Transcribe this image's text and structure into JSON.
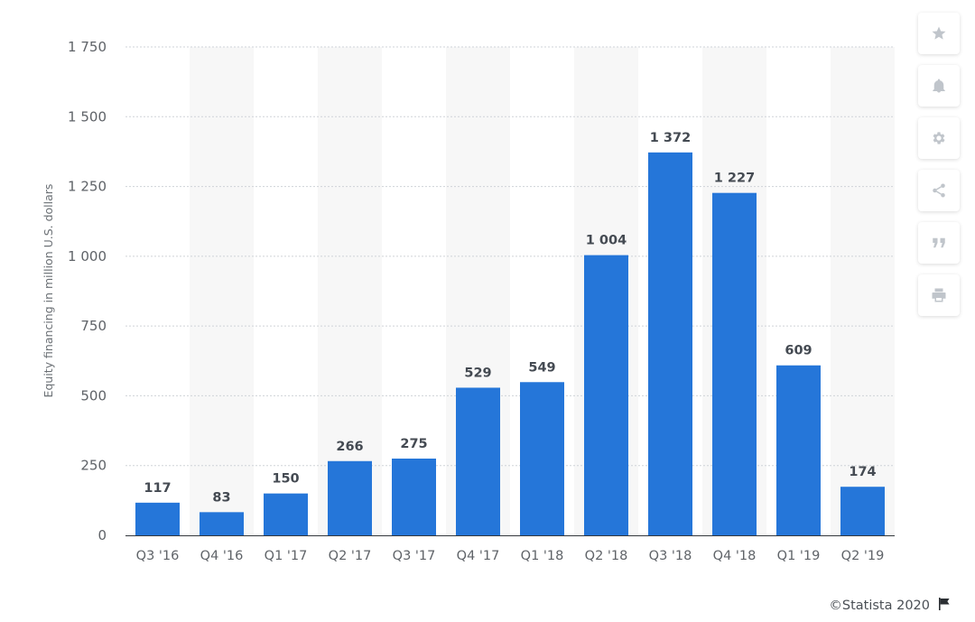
{
  "chart_data": {
    "type": "bar",
    "categories": [
      "Q3 '16",
      "Q4 '16",
      "Q1 '17",
      "Q2 '17",
      "Q3 '17",
      "Q4 '17",
      "Q1 '18",
      "Q2 '18",
      "Q3 '18",
      "Q4 '18",
      "Q1 '19",
      "Q2 '19"
    ],
    "values": [
      117,
      83,
      150,
      266,
      275,
      529,
      549,
      1004,
      1372,
      1227,
      609,
      174
    ],
    "value_labels": [
      "117",
      "83",
      "150",
      "266",
      "275",
      "529",
      "549",
      "1 004",
      "1 372",
      "1 227",
      "609",
      "174"
    ],
    "ylabel": "Equity financing in million U.S. dollars",
    "xlabel": "",
    "ylim": [
      0,
      1750
    ],
    "yticks": [
      0,
      250,
      500,
      750,
      1000,
      1250,
      1500,
      1750
    ],
    "ytick_labels": [
      "0",
      "250",
      "500",
      "750",
      "1 000",
      "1 250",
      "1 500",
      "1 750"
    ],
    "grid": true,
    "legend": "none",
    "bar_color": "#2576d9",
    "band_color": "#f7f7f7",
    "grid_color": "#cfd3d8"
  },
  "toolbar": {
    "buttons": [
      {
        "icon": "star-icon"
      },
      {
        "icon": "bell-icon"
      },
      {
        "icon": "gear-icon"
      },
      {
        "icon": "share-icon"
      },
      {
        "icon": "quote-icon"
      },
      {
        "icon": "print-icon"
      }
    ],
    "icon_color": "#c0c5cb"
  },
  "credit": {
    "text": "©Statista 2020",
    "icon": "flag-icon"
  }
}
